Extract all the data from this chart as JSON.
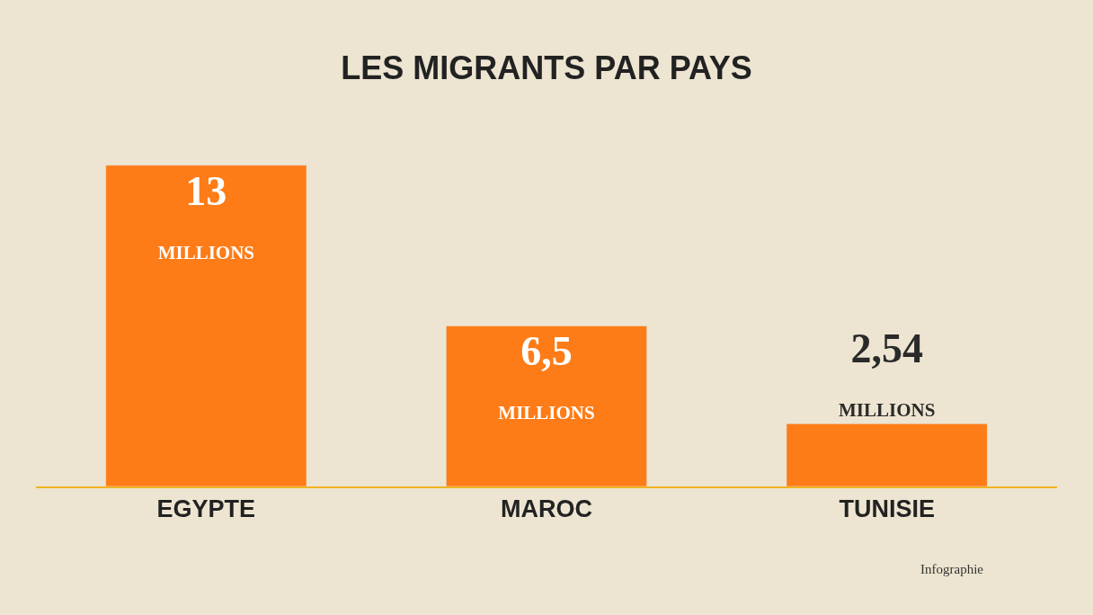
{
  "chart_data": {
    "type": "bar",
    "title": "LES MIGRANTS PAR PAYS",
    "categories": [
      "EGYPTE",
      "MAROC",
      "TUNISIE"
    ],
    "values": [
      13,
      6.5,
      2.54
    ],
    "value_labels": [
      "13\nMILLIONS",
      "6,5\nMILLIONS",
      "2,54\nMILLIONS"
    ],
    "color": "#fd7c17",
    "grid": false,
    "legend": false,
    "tick_labels": "x",
    "annotations": [
      "Infographie"
    ]
  }
}
